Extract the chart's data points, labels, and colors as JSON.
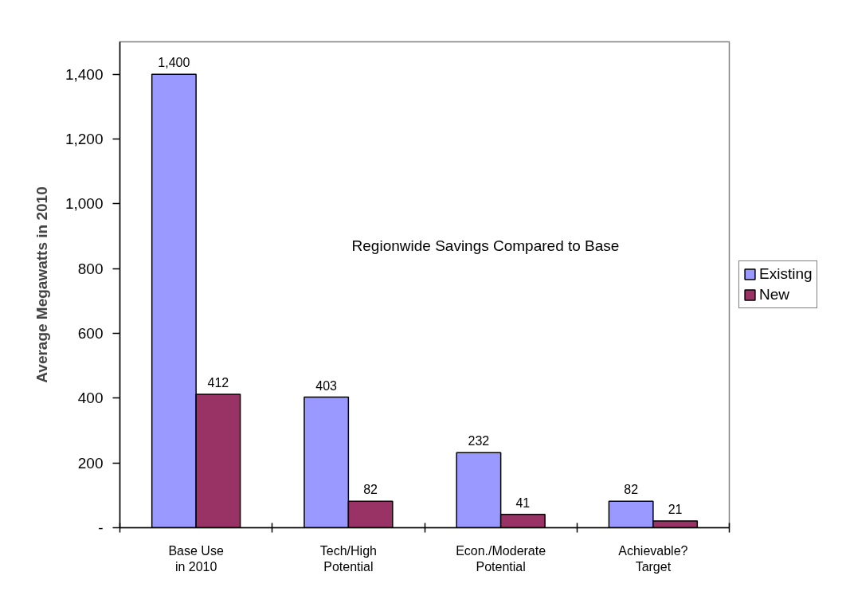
{
  "chart_data": {
    "type": "bar",
    "ylabel": "Average Megawatts in 2010",
    "annotations": [
      "Regionwide Savings Compared to Base"
    ],
    "categories": [
      "Base Use\nin 2010",
      "Tech/High\nPotential",
      "Econ./Moderate\nPotential",
      "Achievable?\nTarget"
    ],
    "series": [
      {
        "name": "Existing",
        "color": "#9999ff",
        "values": [
          1400,
          403,
          232,
          82
        ],
        "value_labels": [
          "1,400",
          "403",
          "232",
          "82"
        ]
      },
      {
        "name": "New",
        "color": "#993366",
        "values": [
          412,
          82,
          41,
          21
        ],
        "value_labels": [
          "412",
          "82",
          "41",
          "21"
        ]
      }
    ],
    "ylim": [
      0,
      1500
    ],
    "yticks": [
      {
        "value": 0,
        "label": "-"
      },
      200,
      400,
      600,
      800,
      {
        "value": 1000,
        "label": "1,000"
      },
      {
        "value": 1200,
        "label": "1,200"
      },
      {
        "value": 1400,
        "label": "1,400"
      }
    ],
    "grid": false,
    "legend": "right"
  }
}
